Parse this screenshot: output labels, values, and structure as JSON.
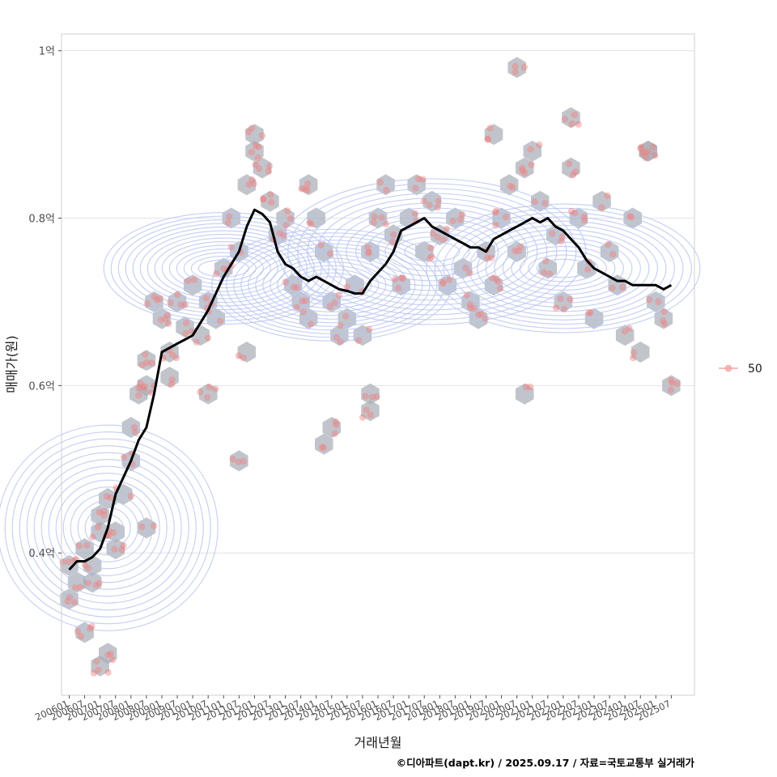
{
  "chart_data": {
    "type": "scatter",
    "xlabel": "거래년월",
    "ylabel": "매매가(원)",
    "caption": "©디아파트(dapt.kr) / 2025.09.17 / 자료=국토교통부 실거래가",
    "x_tick_labels": [
      "200601",
      "200607",
      "200701",
      "200707",
      "200801",
      "200807",
      "200901",
      "200907",
      "201001",
      "201007",
      "201101",
      "201107",
      "201201",
      "201207",
      "201301",
      "201307",
      "201401",
      "201407",
      "201501",
      "201507",
      "201601",
      "201607",
      "201701",
      "201707",
      "201801",
      "201807",
      "201901",
      "201907",
      "202001",
      "202007",
      "202101",
      "202107",
      "202201",
      "202207",
      "202301",
      "202307",
      "202401",
      "202407",
      "202501",
      "202507"
    ],
    "y_ticks": [
      0.4,
      0.6,
      0.8,
      1.0
    ],
    "y_tick_labels": [
      "0.4억",
      "0.6억",
      "0.8억",
      "1억"
    ],
    "xlim": [
      "2005-10",
      "2026-04"
    ],
    "ylim": [
      0.23,
      1.02
    ],
    "grid": true,
    "legend": {
      "position": "right",
      "label": "50"
    },
    "colors": {
      "points": "#f08080",
      "hexbins": "#a9afb7",
      "contours": "#b8c6f0",
      "trend": "#000000",
      "grid": "#dedede",
      "panel_border": "#cfcfcf"
    },
    "trend_line": [
      [
        "2006-01",
        0.38
      ],
      [
        "2006-04",
        0.39
      ],
      [
        "2006-07",
        0.39
      ],
      [
        "2006-10",
        0.395
      ],
      [
        "2007-01",
        0.405
      ],
      [
        "2007-04",
        0.43
      ],
      [
        "2007-07",
        0.47
      ],
      [
        "2007-10",
        0.49
      ],
      [
        "2008-01",
        0.51
      ],
      [
        "2008-04",
        0.535
      ],
      [
        "2008-07",
        0.55
      ],
      [
        "2008-10",
        0.59
      ],
      [
        "2009-01",
        0.64
      ],
      [
        "2009-04",
        0.645
      ],
      [
        "2009-07",
        0.65
      ],
      [
        "2009-10",
        0.655
      ],
      [
        "2010-01",
        0.66
      ],
      [
        "2010-04",
        0.675
      ],
      [
        "2010-07",
        0.69
      ],
      [
        "2010-10",
        0.71
      ],
      [
        "2011-01",
        0.73
      ],
      [
        "2011-04",
        0.745
      ],
      [
        "2011-07",
        0.76
      ],
      [
        "2011-10",
        0.79
      ],
      [
        "2012-01",
        0.81
      ],
      [
        "2012-04",
        0.805
      ],
      [
        "2012-07",
        0.795
      ],
      [
        "2012-10",
        0.76
      ],
      [
        "2013-01",
        0.745
      ],
      [
        "2013-04",
        0.74
      ],
      [
        "2013-07",
        0.73
      ],
      [
        "2013-10",
        0.725
      ],
      [
        "2014-01",
        0.73
      ],
      [
        "2014-04",
        0.725
      ],
      [
        "2014-07",
        0.72
      ],
      [
        "2014-10",
        0.715
      ],
      [
        "2015-01",
        0.713
      ],
      [
        "2015-04",
        0.71
      ],
      [
        "2015-07",
        0.71
      ],
      [
        "2015-10",
        0.725
      ],
      [
        "2016-01",
        0.735
      ],
      [
        "2016-04",
        0.745
      ],
      [
        "2016-07",
        0.76
      ],
      [
        "2016-10",
        0.785
      ],
      [
        "2017-01",
        0.79
      ],
      [
        "2017-04",
        0.795
      ],
      [
        "2017-07",
        0.8
      ],
      [
        "2017-10",
        0.79
      ],
      [
        "2018-01",
        0.785
      ],
      [
        "2018-04",
        0.78
      ],
      [
        "2018-07",
        0.775
      ],
      [
        "2018-10",
        0.77
      ],
      [
        "2019-01",
        0.765
      ],
      [
        "2019-04",
        0.765
      ],
      [
        "2019-07",
        0.76
      ],
      [
        "2019-10",
        0.775
      ],
      [
        "2020-01",
        0.78
      ],
      [
        "2020-04",
        0.785
      ],
      [
        "2020-07",
        0.79
      ],
      [
        "2020-10",
        0.795
      ],
      [
        "2021-01",
        0.8
      ],
      [
        "2021-04",
        0.795
      ],
      [
        "2021-07",
        0.8
      ],
      [
        "2021-10",
        0.79
      ],
      [
        "2022-01",
        0.785
      ],
      [
        "2022-04",
        0.775
      ],
      [
        "2022-07",
        0.765
      ],
      [
        "2022-10",
        0.75
      ],
      [
        "2023-01",
        0.74
      ],
      [
        "2023-04",
        0.735
      ],
      [
        "2023-07",
        0.73
      ],
      [
        "2023-10",
        0.725
      ],
      [
        "2024-01",
        0.725
      ],
      [
        "2024-04",
        0.72
      ],
      [
        "2024-07",
        0.72
      ],
      [
        "2024-10",
        0.72
      ],
      [
        "2025-01",
        0.72
      ],
      [
        "2025-04",
        0.715
      ],
      [
        "2025-07",
        0.72
      ]
    ],
    "hexbins": [
      [
        "2006-01",
        0.385
      ],
      [
        "2006-01",
        0.345
      ],
      [
        "2006-04",
        0.365
      ],
      [
        "2006-07",
        0.405
      ],
      [
        "2006-10",
        0.385
      ],
      [
        "2007-01",
        0.425
      ],
      [
        "2007-01",
        0.445
      ],
      [
        "2007-04",
        0.465
      ],
      [
        "2007-07",
        0.425
      ],
      [
        "2007-07",
        0.405
      ],
      [
        "2006-10",
        0.365
      ],
      [
        "2006-07",
        0.305
      ],
      [
        "2007-01",
        0.265
      ],
      [
        "2007-04",
        0.28
      ],
      [
        "2007-10",
        0.47
      ],
      [
        "2008-01",
        0.51
      ],
      [
        "2008-01",
        0.55
      ],
      [
        "2008-04",
        0.59
      ],
      [
        "2008-07",
        0.63
      ],
      [
        "2008-07",
        0.6
      ],
      [
        "2008-10",
        0.7
      ],
      [
        "2009-01",
        0.68
      ],
      [
        "2009-04",
        0.64
      ],
      [
        "2009-04",
        0.61
      ],
      [
        "2009-07",
        0.7
      ],
      [
        "2009-10",
        0.67
      ],
      [
        "2010-01",
        0.72
      ],
      [
        "2010-04",
        0.66
      ],
      [
        "2010-07",
        0.7
      ],
      [
        "2010-10",
        0.68
      ],
      [
        "2011-01",
        0.74
      ],
      [
        "2011-04",
        0.8
      ],
      [
        "2011-07",
        0.76
      ],
      [
        "2011-10",
        0.84
      ],
      [
        "2012-01",
        0.88
      ],
      [
        "2012-04",
        0.86
      ],
      [
        "2012-07",
        0.82
      ],
      [
        "2012-10",
        0.78
      ],
      [
        "2013-01",
        0.8
      ],
      [
        "2013-04",
        0.72
      ],
      [
        "2013-07",
        0.7
      ],
      [
        "2013-10",
        0.68
      ],
      [
        "2014-01",
        0.8
      ],
      [
        "2014-04",
        0.76
      ],
      [
        "2014-07",
        0.7
      ],
      [
        "2014-10",
        0.66
      ],
      [
        "2015-01",
        0.68
      ],
      [
        "2015-04",
        0.72
      ],
      [
        "2015-07",
        0.66
      ],
      [
        "2015-10",
        0.59
      ],
      [
        "2015-10",
        0.76
      ],
      [
        "2016-01",
        0.8
      ],
      [
        "2016-04",
        0.84
      ],
      [
        "2016-07",
        0.78
      ],
      [
        "2016-10",
        0.72
      ],
      [
        "2017-01",
        0.8
      ],
      [
        "2017-04",
        0.84
      ],
      [
        "2017-07",
        0.76
      ],
      [
        "2017-10",
        0.82
      ],
      [
        "2018-01",
        0.78
      ],
      [
        "2018-04",
        0.72
      ],
      [
        "2018-07",
        0.8
      ],
      [
        "2018-10",
        0.74
      ],
      [
        "2019-01",
        0.7
      ],
      [
        "2019-04",
        0.68
      ],
      [
        "2019-07",
        0.76
      ],
      [
        "2019-10",
        0.72
      ],
      [
        "2020-01",
        0.8
      ],
      [
        "2020-04",
        0.84
      ],
      [
        "2020-07",
        0.76
      ],
      [
        "2020-10",
        0.86
      ],
      [
        "2021-01",
        0.88
      ],
      [
        "2021-04",
        0.82
      ],
      [
        "2021-07",
        0.74
      ],
      [
        "2021-10",
        0.78
      ],
      [
        "2022-01",
        0.7
      ],
      [
        "2022-04",
        0.86
      ],
      [
        "2022-07",
        0.8
      ],
      [
        "2022-10",
        0.74
      ],
      [
        "2023-01",
        0.68
      ],
      [
        "2023-04",
        0.82
      ],
      [
        "2023-07",
        0.76
      ],
      [
        "2023-10",
        0.72
      ],
      [
        "2024-01",
        0.66
      ],
      [
        "2024-04",
        0.8
      ],
      [
        "2024-07",
        0.64
      ],
      [
        "2024-10",
        0.88
      ],
      [
        "2025-01",
        0.7
      ],
      [
        "2025-04",
        0.68
      ],
      [
        "2025-07",
        0.6
      ],
      [
        "2020-07",
        0.98
      ],
      [
        "2022-04",
        0.92
      ],
      [
        "2019-10",
        0.9
      ],
      [
        "2011-10",
        0.64
      ],
      [
        "2008-07",
        0.43
      ],
      [
        "2014-04",
        0.53
      ],
      [
        "2014-07",
        0.55
      ],
      [
        "2015-10",
        0.57
      ],
      [
        "2010-07",
        0.59
      ],
      [
        "2011-07",
        0.51
      ],
      [
        "2020-10",
        0.59
      ],
      [
        "2012-01",
        0.9
      ],
      [
        "2013-10",
        0.84
      ],
      [
        "2024-10",
        0.88
      ]
    ],
    "contour_levels": 14,
    "contour_centers": [
      {
        "x": "2007-04",
        "y": 0.43,
        "weight": 1.0
      },
      {
        "x": "2017-10",
        "y": 0.76,
        "weight": 0.8
      },
      {
        "x": "2022-01",
        "y": 0.74,
        "weight": 0.7
      },
      {
        "x": "2014-07",
        "y": 0.72,
        "weight": 0.6
      },
      {
        "x": "2011-01",
        "y": 0.74,
        "weight": 0.6
      }
    ]
  }
}
